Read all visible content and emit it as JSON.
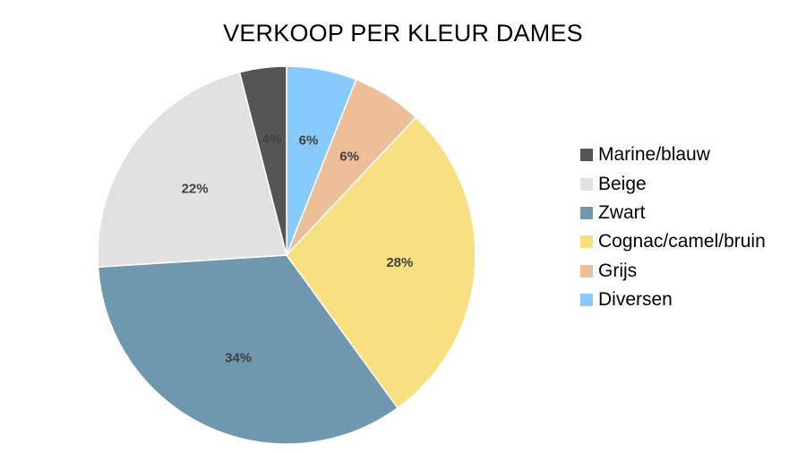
{
  "chart_data": {
    "type": "pie",
    "title": "VERKOOP PER KLEUR DAMES",
    "legend_position": "right",
    "slices": [
      {
        "name": "Diversen",
        "value": 6,
        "label": "6%",
        "color": "#87CAFD"
      },
      {
        "name": "Grijs",
        "value": 6,
        "label": "6%",
        "color": "#EEBE98"
      },
      {
        "name": "Cognac/camel/bruin",
        "value": 28,
        "label": "28%",
        "color": "#F8DF81"
      },
      {
        "name": "Zwart",
        "value": 34,
        "label": "34%",
        "color": "#6F97AD"
      },
      {
        "name": "Beige",
        "value": 22,
        "label": "22%",
        "color": "#E1E1E1"
      },
      {
        "name": "Marine/blauw",
        "value": 4,
        "label": "4%",
        "color": "#555555"
      }
    ],
    "legend": [
      {
        "name": "Marine/blauw",
        "color": "#555555"
      },
      {
        "name": "Beige",
        "color": "#E1E1E1"
      },
      {
        "name": "Zwart",
        "color": "#6F97AD"
      },
      {
        "name": "Cognac/camel/bruin",
        "color": "#F8DF81"
      },
      {
        "name": "Grijs",
        "color": "#EEBE98"
      },
      {
        "name": "Diversen",
        "color": "#87CAFD"
      }
    ]
  }
}
